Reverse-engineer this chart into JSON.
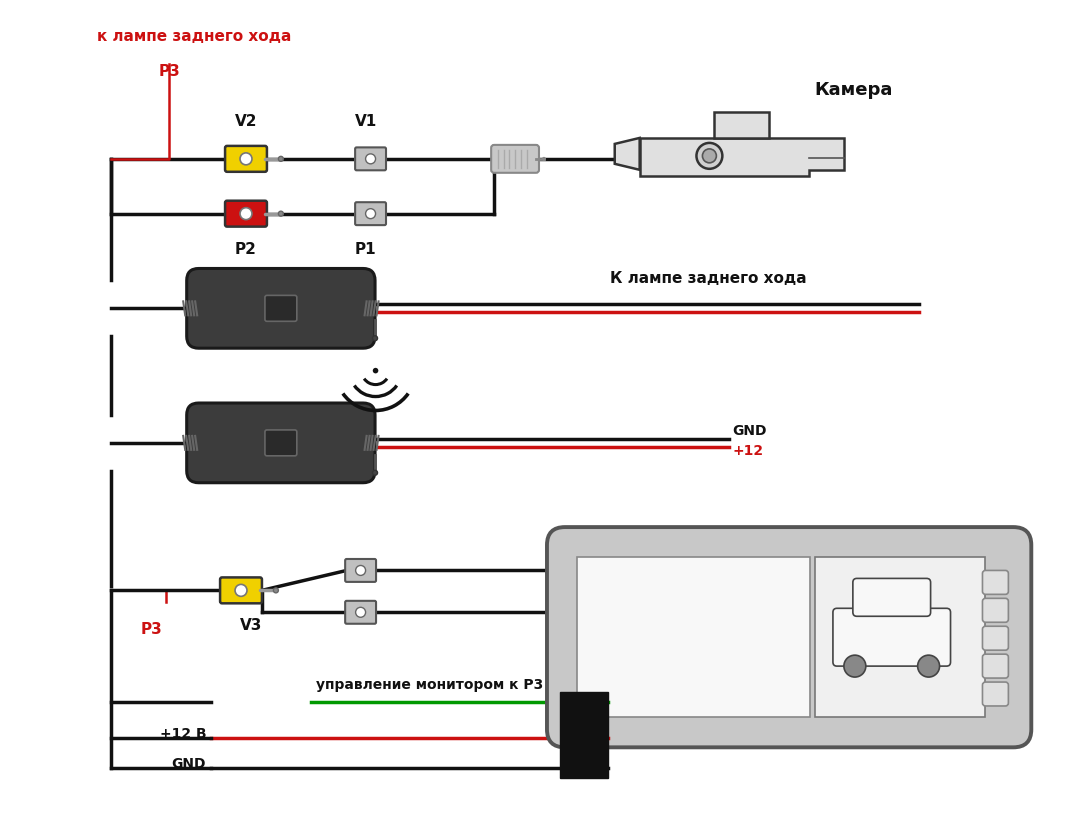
{
  "bg": "#ffffff",
  "black": "#111111",
  "red": "#cc1111",
  "green": "#009900",
  "yellow": "#f0d000",
  "yellow_dark": "#c8a800",
  "gray_module": "#3a3a3a",
  "gray_light": "#d8d8d8",
  "gray_silver": "#b0b0b0",
  "label_top_red": "к лампе заднего хода",
  "P3": "P3",
  "V2": "V2",
  "V1": "V1",
  "P2": "P2",
  "P1": "P1",
  "camera_label": "Камера",
  "lamp_label": "К лампе заднего хода",
  "GND": "GND",
  "plus12": "+12",
  "V3": "V3",
  "ctrl_label": "управление монитором к P3",
  "plus12v": "+12 В",
  "GND2": "GND"
}
